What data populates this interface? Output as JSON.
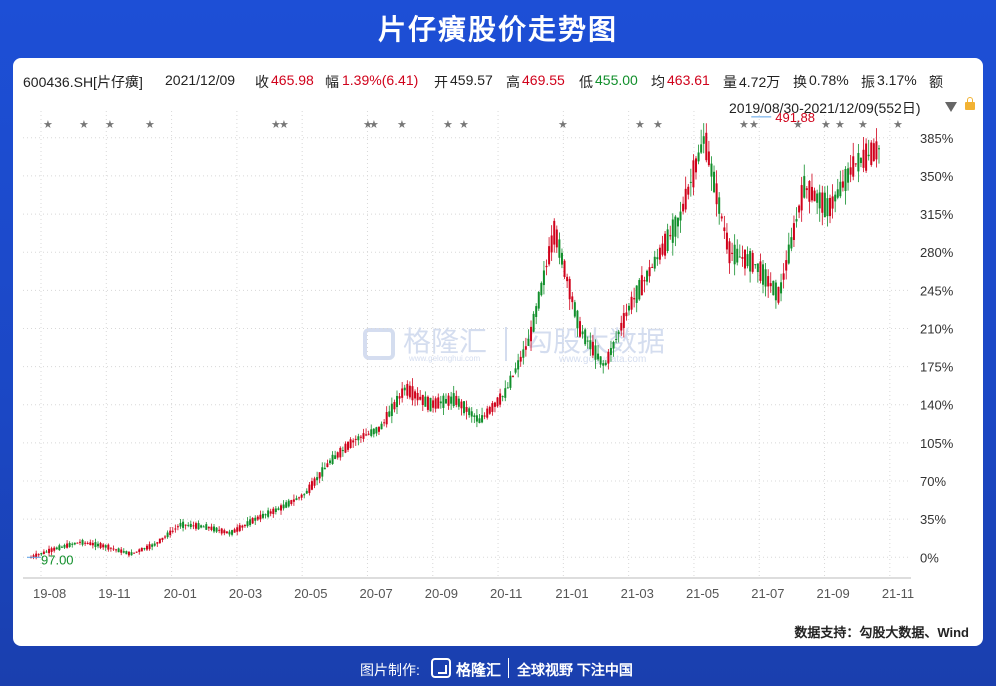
{
  "header": {
    "title": "片仔癀股价走势图"
  },
  "info": {
    "code": "600436.SH[片仔癀]",
    "date": "2021/12/09",
    "close_label": "收",
    "close": "465.98",
    "chg_label": "幅",
    "chg": "1.39%(6.41)",
    "open_label": "开",
    "open": "459.57",
    "high_label": "高",
    "high": "469.55",
    "low_label": "低",
    "low": "455.00",
    "avg_label": "均",
    "avg": "463.61",
    "vol_label": "量",
    "vol": "4.72万",
    "turn_label": "换",
    "turn": "0.78%",
    "amp_label": "振",
    "amp": "3.17%",
    "amt_label": "额",
    "range": "2019/08/30-2021/12/09(552日)"
  },
  "watermark": {
    "brand": "格隆汇",
    "brand_url": "www.gelonghui.com",
    "data": "勾股大数据",
    "data_url": "www.gogudata.com"
  },
  "source": "数据支持：勾股大数据、Wind",
  "footer": {
    "label": "图片制作:",
    "brand": "格隆汇",
    "slogan": "全球视野 下注中国"
  },
  "colors": {
    "up": "#d0021b",
    "down": "#118f2b",
    "bg": "#1d4fd6"
  },
  "chart_data": {
    "type": "line",
    "series_style": "candlestick",
    "start_value": 97.0,
    "y_unit": "% change from start",
    "ylim": [
      -8,
      405
    ],
    "yticks": [
      "0%",
      "35%",
      "70%",
      "105%",
      "140%",
      "175%",
      "210%",
      "245%",
      "280%",
      "315%",
      "350%",
      "385%"
    ],
    "x_labels": [
      "19-08",
      "19-11",
      "20-01",
      "20-03",
      "20-05",
      "20-07",
      "20-09",
      "20-11",
      "21-01",
      "21-03",
      "21-05",
      "21-07",
      "21-09",
      "21-11"
    ],
    "annotations": [
      {
        "text": "491.88",
        "x": "21-07",
        "y": 406,
        "kind": "high"
      },
      {
        "text": "97.00",
        "x": "19-08",
        "y": 0,
        "kind": "low"
      }
    ],
    "points": [
      {
        "x": "19-08",
        "y": 0
      },
      {
        "x": "19-09",
        "y": 8
      },
      {
        "x": "19-10",
        "y": 14
      },
      {
        "x": "19-11",
        "y": 10
      },
      {
        "x": "19-12",
        "y": 3
      },
      {
        "x": "20-01",
        "y": 12
      },
      {
        "x": "20-01b",
        "y": 30
      },
      {
        "x": "20-02",
        "y": 28
      },
      {
        "x": "20-03",
        "y": 22
      },
      {
        "x": "20-04",
        "y": 35
      },
      {
        "x": "20-05",
        "y": 45
      },
      {
        "x": "20-06",
        "y": 58
      },
      {
        "x": "20-07",
        "y": 88
      },
      {
        "x": "20-07b",
        "y": 108
      },
      {
        "x": "20-08",
        "y": 118
      },
      {
        "x": "20-08b",
        "y": 155
      },
      {
        "x": "20-09",
        "y": 140
      },
      {
        "x": "20-10",
        "y": 145
      },
      {
        "x": "20-11",
        "y": 125
      },
      {
        "x": "20-12",
        "y": 150
      },
      {
        "x": "21-01",
        "y": 200
      },
      {
        "x": "21-01b",
        "y": 300
      },
      {
        "x": "21-02",
        "y": 210
      },
      {
        "x": "21-03",
        "y": 175
      },
      {
        "x": "21-04",
        "y": 230
      },
      {
        "x": "21-05",
        "y": 270
      },
      {
        "x": "21-06",
        "y": 310
      },
      {
        "x": "21-07",
        "y": 385
      },
      {
        "x": "21-07b",
        "y": 280
      },
      {
        "x": "21-08",
        "y": 270
      },
      {
        "x": "21-09",
        "y": 240
      },
      {
        "x": "21-10",
        "y": 340
      },
      {
        "x": "21-10b",
        "y": 320
      },
      {
        "x": "21-11",
        "y": 360
      },
      {
        "x": "21-12",
        "y": 375
      }
    ]
  }
}
